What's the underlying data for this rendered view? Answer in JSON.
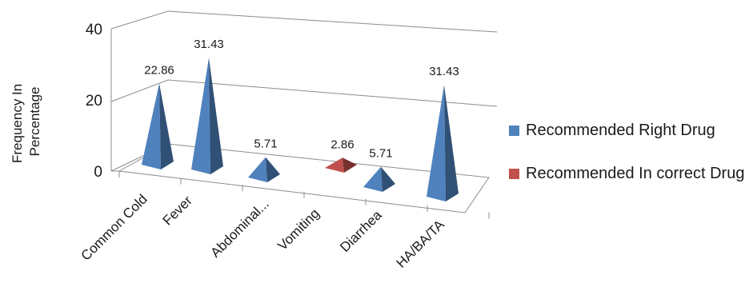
{
  "chart_data": {
    "type": "bar",
    "style": "3d-pyramid",
    "categories": [
      "Common Cold",
      "Fever",
      "Abdominal...",
      "Vomiting",
      "Diarrhea",
      "HA/BA/TA"
    ],
    "series": [
      {
        "name": "Recommended Right Drug",
        "color": "#4f81bd",
        "values": [
          22.86,
          31.43,
          5.71,
          null,
          5.71,
          31.43
        ]
      },
      {
        "name": "Recommended In correct Drug",
        "color": "#c0504d",
        "values": [
          null,
          null,
          null,
          2.86,
          null,
          null
        ]
      }
    ],
    "data_labels": [
      "22.86",
      "31.43",
      "5.71",
      "2.86",
      "5.71",
      "31.43"
    ],
    "yticks": [
      "0",
      "20",
      "40"
    ],
    "ylim": [
      0,
      40
    ],
    "xlabel": "",
    "ylabel": [
      "Frequency In",
      "Percentage"
    ],
    "grid": true,
    "legend_position": "right"
  }
}
